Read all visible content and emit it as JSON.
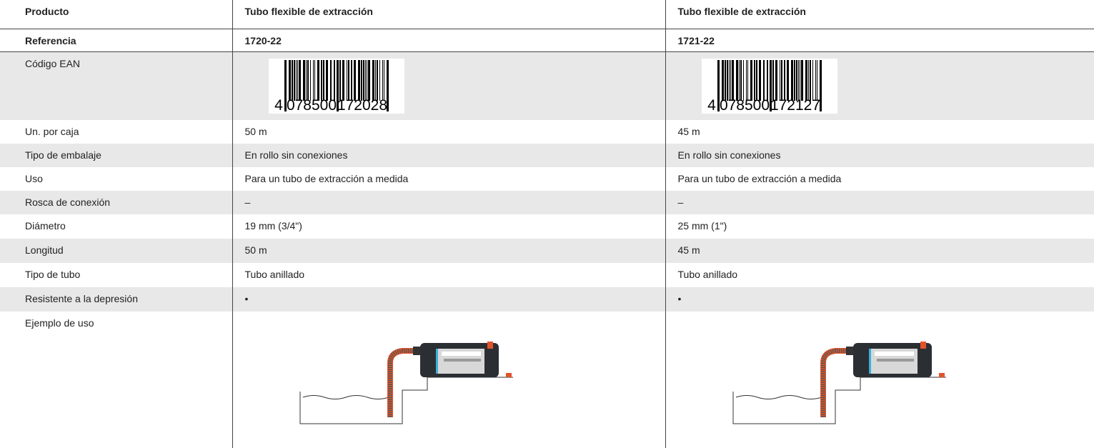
{
  "table": {
    "header": [
      "Producto",
      "Tubo flexible de extracción",
      "Tubo flexible de extracción"
    ],
    "rows": [
      [
        "Referencia",
        "1720-22",
        "1721-22"
      ],
      [
        "Código EAN",
        {
          "lead": "4",
          "left": "078500",
          "right": "172028"
        },
        {
          "lead": "4",
          "left": "078500",
          "right": "172127"
        }
      ],
      [
        "Un. por caja",
        "50 m",
        "45 m"
      ],
      [
        "Tipo de embalaje",
        "En rollo sin conexiones",
        "En rollo sin conexiones"
      ],
      [
        "Uso",
        "Para un tubo de extracción a medida",
        "Para un tubo de extracción a medida"
      ],
      [
        "Rosca de conexión",
        "–",
        "–"
      ],
      [
        "Diámetro",
        "19 mm (3/4\")",
        "25 mm (1\")"
      ],
      [
        "Longitud",
        "50 m",
        "45 m"
      ],
      [
        "Tipo de tubo",
        "Tubo anillado",
        "Tubo anillado"
      ],
      [
        "Resistente a la depresión",
        "•",
        "•"
      ],
      [
        "Ejemplo de uso"
      ]
    ]
  }
}
